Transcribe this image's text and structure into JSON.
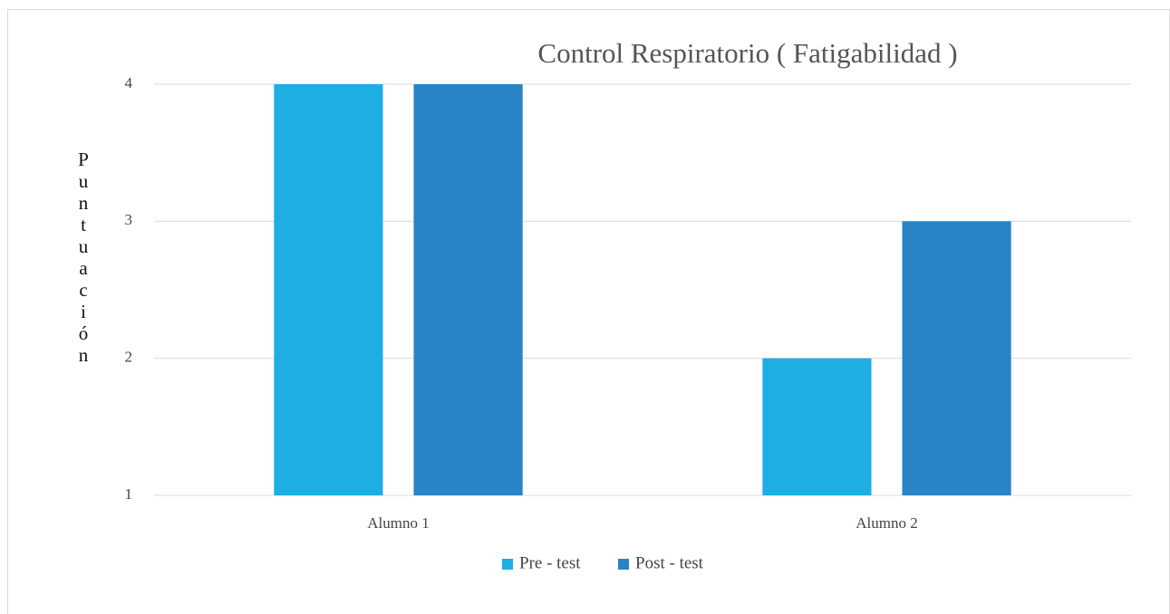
{
  "chart_data": {
    "type": "bar",
    "title": "Control Respiratorio ( Fatigabilidad )",
    "y_label": "Puntuación",
    "categories": [
      "Alumno 1",
      "Alumno 2"
    ],
    "series": [
      {
        "name": "Pre - test",
        "color": "#1eaee3",
        "values": [
          4,
          2
        ]
      },
      {
        "name": "Post - test",
        "color": "#2884c6",
        "values": [
          4,
          3
        ]
      }
    ],
    "ylim": [
      1,
      4
    ],
    "yticks": [
      1,
      2,
      3,
      4
    ],
    "grid": true,
    "legend": "bottom"
  }
}
